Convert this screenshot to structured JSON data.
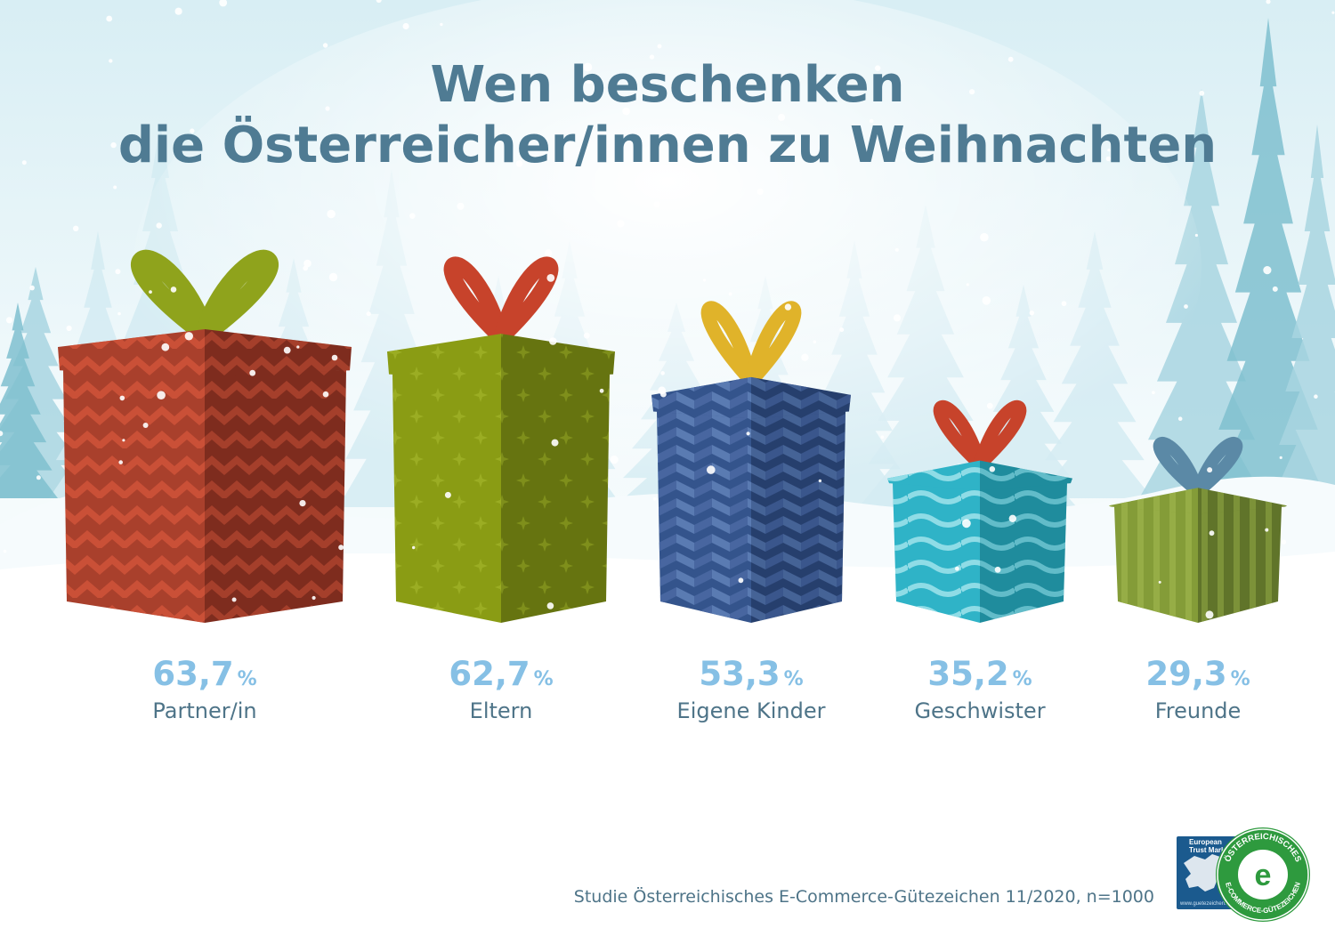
{
  "title": {
    "line1": "Wen beschenken",
    "line2": "die Österreicher/innen zu Weihnachten"
  },
  "chart_data": {
    "type": "bar",
    "categories": [
      "Partner/in",
      "Eltern",
      "Eigene Kinder",
      "Geschwister",
      "Freunde"
    ],
    "values": [
      63.7,
      62.7,
      53.3,
      35.2,
      29.3
    ],
    "value_labels": [
      "63,7",
      "62,7",
      "53,3",
      "35,2",
      "29,3"
    ],
    "unit": "%",
    "bar_style": "gift-boxes",
    "grid": false,
    "legend": "none"
  },
  "gifts": [
    {
      "box_color": "#a9402c",
      "box_shade": "#7e2c1e",
      "ribbon_color": "#8fa31c",
      "pattern": "chevron"
    },
    {
      "box_color": "#8a9c14",
      "box_shade": "#667410",
      "ribbon_color": "#c7432b",
      "pattern": "stars"
    },
    {
      "box_color": "#34548c",
      "box_shade": "#263f6d",
      "ribbon_color": "#e0b32a",
      "pattern": "herringbone"
    },
    {
      "box_color": "#2fb3c7",
      "box_shade": "#1f8c9d",
      "ribbon_color": "#c7432b",
      "pattern": "waves"
    },
    {
      "box_color": "#849c38",
      "box_shade": "#60742a",
      "ribbon_color": "#5b89a6",
      "pattern": "stripes"
    }
  ],
  "source": "Studie Österreichisches E-Commerce-Gütezeichen 11/2020, n=1000",
  "badges": {
    "trustmark_text": "European Trust Mark",
    "trustmark_url": "www.guetezeichen.at",
    "seal_top": "ÖSTERREICHISCHES",
    "seal_bottom": "E-COMMERCE-GÜTEZEICHEN"
  },
  "colors": {
    "title": "#4f7b93",
    "value": "#86c0e5",
    "label": "#4e7488",
    "tree_light": "#d4ebf2",
    "tree_mid": "#a8d5e1",
    "tree_dark": "#7fbfcf",
    "seal_green": "#2e9a3e"
  }
}
